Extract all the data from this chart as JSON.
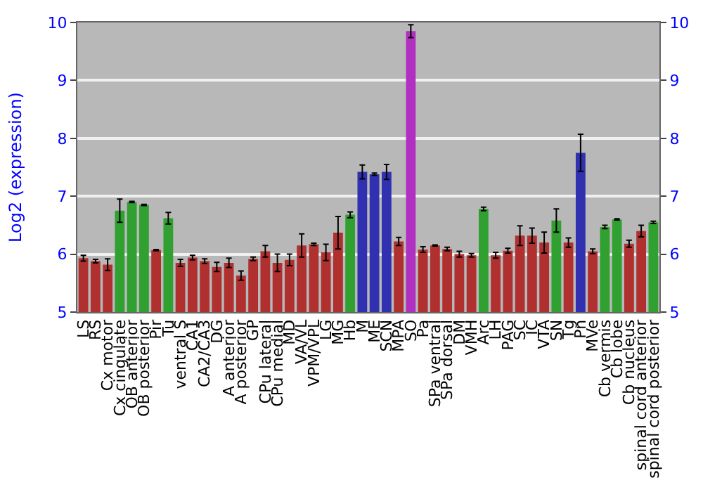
{
  "chart_data": {
    "type": "bar",
    "ylabel": "Log2 (expression)",
    "categories": [
      "LS",
      "RS",
      "Cx motor",
      "Cx cingulate",
      "OB anterior",
      "OB posterior",
      "Pir",
      "Tu",
      "ventral S",
      "CA1",
      "CA2/CA3",
      "DG",
      "A anterior",
      "A posterior",
      "GP",
      "CPu lateral",
      "CPu medial",
      "MD",
      "VA/VL",
      "VPM/VPL",
      "LG",
      "MG",
      "Hb",
      "M",
      "ME",
      "SCN",
      "MPA",
      "SO",
      "Pa",
      "SPa ventral",
      "SPa dorsal",
      "DM",
      "VMH",
      "Arc",
      "LH",
      "PAG",
      "SC",
      "IC",
      "VTA",
      "SN",
      "Tg",
      "Pn",
      "MVe",
      "Cb vermis",
      "Cb lobe",
      "Cb nucleus",
      "spinal cord anterior",
      "spinal cord posterior"
    ],
    "values": [
      5.93,
      5.88,
      5.82,
      6.75,
      6.9,
      6.85,
      6.07,
      6.62,
      5.85,
      5.94,
      5.88,
      5.78,
      5.85,
      5.63,
      5.92,
      6.05,
      5.85,
      5.9,
      6.15,
      6.17,
      6.03,
      6.37,
      6.68,
      7.42,
      7.38,
      7.42,
      6.22,
      9.85,
      6.08,
      6.15,
      6.09,
      6.0,
      5.98,
      6.78,
      5.98,
      6.06,
      6.32,
      6.32,
      6.2,
      6.58,
      6.2,
      7.75,
      6.05,
      6.47,
      6.6,
      6.18,
      6.4,
      6.55
    ],
    "errors": [
      0.05,
      0.03,
      0.1,
      0.2,
      0.01,
      0.01,
      0.01,
      0.1,
      0.06,
      0.04,
      0.04,
      0.08,
      0.08,
      0.08,
      0.03,
      0.1,
      0.15,
      0.1,
      0.2,
      0.02,
      0.14,
      0.28,
      0.05,
      0.12,
      0.02,
      0.13,
      0.07,
      0.11,
      0.05,
      0.01,
      0.03,
      0.05,
      0.03,
      0.03,
      0.05,
      0.04,
      0.17,
      0.13,
      0.18,
      0.2,
      0.08,
      0.32,
      0.04,
      0.03,
      0.01,
      0.06,
      0.1,
      0.02
    ],
    "colors": [
      "#b03030",
      "#b03030",
      "#b03030",
      "#30a030",
      "#30a030",
      "#30a030",
      "#b03030",
      "#30a030",
      "#b03030",
      "#b03030",
      "#b03030",
      "#b03030",
      "#b03030",
      "#b03030",
      "#b03030",
      "#b03030",
      "#b03030",
      "#b03030",
      "#b03030",
      "#b03030",
      "#b03030",
      "#b03030",
      "#30a030",
      "#3030b0",
      "#3030b0",
      "#3030b0",
      "#b03030",
      "#b030c0",
      "#b03030",
      "#b03030",
      "#b03030",
      "#b03030",
      "#b03030",
      "#30a030",
      "#b03030",
      "#b03030",
      "#b03030",
      "#b03030",
      "#b03030",
      "#30a030",
      "#b03030",
      "#3030b0",
      "#b03030",
      "#30a030",
      "#30a030",
      "#b03030",
      "#b03030",
      "#30a030"
    ],
    "ylim": [
      5,
      10
    ],
    "yticks": [
      5,
      6,
      7,
      8,
      9,
      10
    ],
    "y2lim": [
      5,
      10
    ],
    "y2ticks": [
      5,
      6,
      7,
      8,
      9,
      10
    ],
    "grid": "y"
  }
}
